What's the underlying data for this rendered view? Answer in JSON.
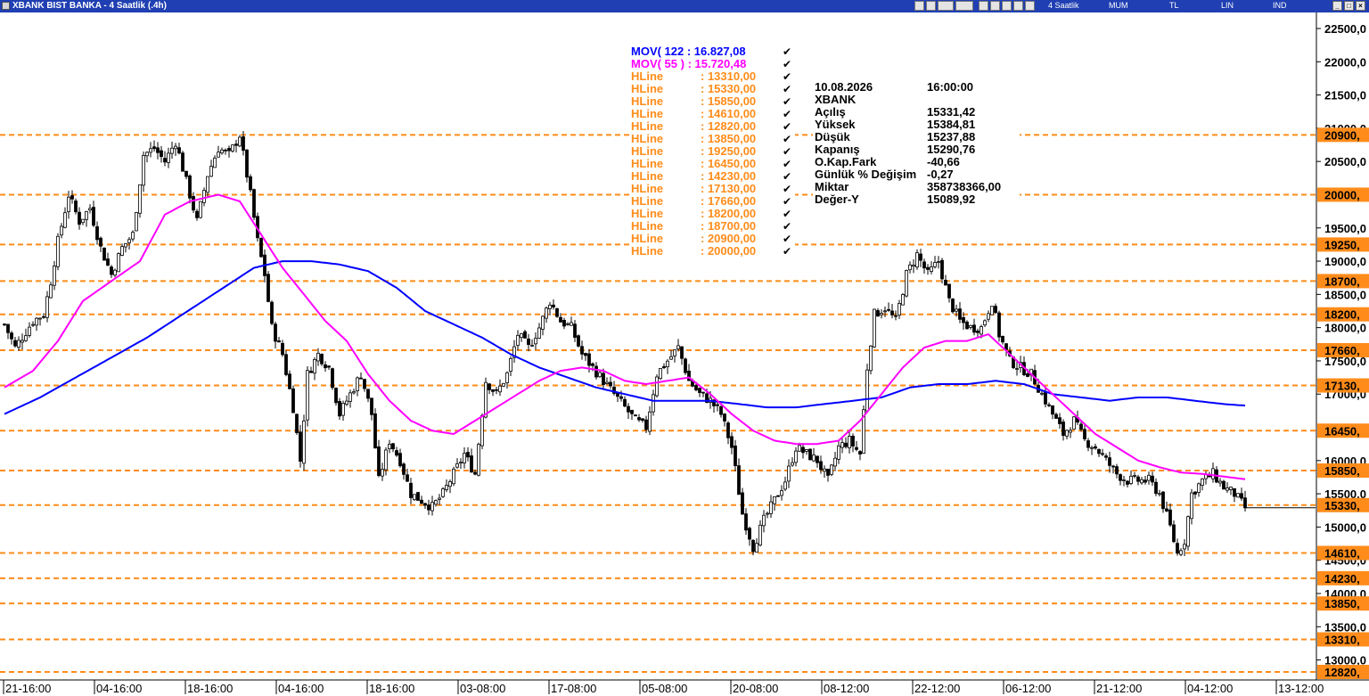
{
  "window": {
    "title": "XBANK BIST BANKA - 4 Saatlik (.4h)",
    "toolbar_labels": [
      "4 Saatlik",
      "MUM",
      "TL",
      "LIN",
      "IND"
    ]
  },
  "legend": {
    "mov_lines": [
      {
        "label": "MOV( 122 : 16.827,08",
        "color": "#0000ff"
      },
      {
        "label": "MOV( 55 ) : 15.720,48",
        "color": "#ff00ff"
      }
    ],
    "hlines": [
      {
        "name": "HLine",
        "value": ": 13310,00"
      },
      {
        "name": "HLine",
        "value": ": 15330,00"
      },
      {
        "name": "HLine",
        "value": ": 15850,00"
      },
      {
        "name": "HLine",
        "value": ": 14610,00"
      },
      {
        "name": "HLine",
        "value": ": 12820,00"
      },
      {
        "name": "HLine",
        "value": ": 13850,00"
      },
      {
        "name": "HLine",
        "value": ": 19250,00"
      },
      {
        "name": "HLine",
        "value": ": 16450,00"
      },
      {
        "name": "HLine",
        "value": ": 14230,00"
      },
      {
        "name": "HLine",
        "value": ": 17130,00"
      },
      {
        "name": "HLine",
        "value": ": 17660,00"
      },
      {
        "name": "HLine",
        "value": ": 18200,00"
      },
      {
        "name": "HLine",
        "value": ": 18700,00"
      },
      {
        "name": "HLine",
        "value": ": 20900,00"
      },
      {
        "name": "HLine",
        "value": ": 20000,00"
      }
    ],
    "check": "✔"
  },
  "info": [
    [
      "10.08.2026",
      "16:00:00"
    ],
    [
      "XBANK",
      ""
    ],
    [
      "Açılış",
      "15331,42"
    ],
    [
      "Yüksek",
      "15384,81"
    ],
    [
      "Düşük",
      "15237,88"
    ],
    [
      "Kapanış",
      "15290,76"
    ],
    [
      "O.Kap.Fark",
      "-40,66"
    ],
    [
      "Günlük % Değişim",
      "-0,27"
    ],
    [
      "Miktar",
      "358738366,00"
    ],
    [
      "Değer-Y",
      "15089,92"
    ]
  ],
  "colors": {
    "titlebar": "#1f3fb2",
    "mov122": "#0000ff",
    "mov55": "#ff00ff",
    "hline": "#ff8c1a",
    "hline_label_bg": "#ff8c1a",
    "candle": "#000000"
  },
  "chart_data": {
    "type": "candlestick",
    "symbol": "XBANK",
    "ylim": [
      12750,
      22650
    ],
    "y_ticks": [
      {
        "value": 22500,
        "label": "22500,0"
      },
      {
        "value": 22000,
        "label": "22000,0"
      },
      {
        "value": 21500,
        "label": "21500,0"
      },
      {
        "value": 21000,
        "label": "21000,0"
      },
      {
        "value": 20500,
        "label": "20500,0"
      },
      {
        "value": 19500,
        "label": "19500,0"
      },
      {
        "value": 19000,
        "label": "19000,0"
      },
      {
        "value": 18500,
        "label": "18500,0"
      },
      {
        "value": 18000,
        "label": "18000,0"
      },
      {
        "value": 17500,
        "label": "17500,0"
      },
      {
        "value": 17000,
        "label": "17000,0"
      },
      {
        "value": 16000,
        "label": "16000,0"
      },
      {
        "value": 15500,
        "label": "15500,0"
      },
      {
        "value": 15000,
        "label": "15000,0"
      },
      {
        "value": 14500,
        "label": "14500,0"
      },
      {
        "value": 14000,
        "label": "14000,0"
      },
      {
        "value": 13500,
        "label": "13500,0"
      },
      {
        "value": 13000,
        "label": "13000,0"
      }
    ],
    "hline_levels": [
      {
        "value": 20900,
        "label": "20900,"
      },
      {
        "value": 20000,
        "label": "20000,"
      },
      {
        "value": 19250,
        "label": "19250,"
      },
      {
        "value": 18700,
        "label": "18700,"
      },
      {
        "value": 18200,
        "label": "18200,"
      },
      {
        "value": 17660,
        "label": "17660,"
      },
      {
        "value": 17130,
        "label": "17130,"
      },
      {
        "value": 16450,
        "label": "16450,"
      },
      {
        "value": 15850,
        "label": "15850,"
      },
      {
        "value": 15330,
        "label": "15330,"
      },
      {
        "value": 14610,
        "label": "14610,"
      },
      {
        "value": 14230,
        "label": "14230,"
      },
      {
        "value": 13850,
        "label": "13850,"
      },
      {
        "value": 13310,
        "label": "13310,"
      },
      {
        "value": 12820,
        "label": "12820,"
      }
    ],
    "x_labels": [
      "21-16:00",
      "04-16:00",
      "18-16:00",
      "04-16:00",
      "18-16:00",
      "03-08:00",
      "17-08:00",
      "05-08:00",
      "20-08:00",
      "08-12:00",
      "22-12:00",
      "06-12:00",
      "21-12:00",
      "04-12:00",
      "13-12:00"
    ],
    "x_label_bars": [
      0,
      25.5,
      51,
      76.5,
      102,
      127.5,
      153,
      178.5,
      204,
      229.5,
      255,
      280.5,
      306,
      331.5,
      357
    ],
    "total_slots": 364,
    "close_path": [
      [
        0,
        18050
      ],
      [
        3,
        17700
      ],
      [
        8,
        18100
      ],
      [
        11,
        18200
      ],
      [
        13,
        18700
      ],
      [
        15,
        19300
      ],
      [
        18,
        20000
      ],
      [
        21,
        19600
      ],
      [
        24,
        19800
      ],
      [
        27,
        19200
      ],
      [
        30,
        18800
      ],
      [
        33,
        19200
      ],
      [
        36,
        19400
      ],
      [
        39,
        20600
      ],
      [
        42,
        20700
      ],
      [
        45,
        20500
      ],
      [
        48,
        20800
      ],
      [
        51,
        20200
      ],
      [
        54,
        19600
      ],
      [
        57,
        20300
      ],
      [
        60,
        20700
      ],
      [
        63,
        20600
      ],
      [
        66,
        20900
      ],
      [
        69,
        20000
      ],
      [
        71,
        19300
      ],
      [
        73,
        18800
      ],
      [
        75,
        18000
      ],
      [
        78,
        17600
      ],
      [
        81,
        16800
      ],
      [
        83,
        16000
      ],
      [
        85,
        17300
      ],
      [
        88,
        17600
      ],
      [
        91,
        17400
      ],
      [
        94,
        16700
      ],
      [
        97,
        17000
      ],
      [
        100,
        17300
      ],
      [
        103,
        16700
      ],
      [
        105,
        15700
      ],
      [
        108,
        16300
      ],
      [
        111,
        16000
      ],
      [
        114,
        15500
      ],
      [
        117,
        15400
      ],
      [
        120,
        15300
      ],
      [
        123,
        15500
      ],
      [
        126,
        15800
      ],
      [
        129,
        16100
      ],
      [
        132,
        15800
      ],
      [
        135,
        17200
      ],
      [
        138,
        17000
      ],
      [
        141,
        17300
      ],
      [
        144,
        17900
      ],
      [
        147,
        17700
      ],
      [
        150,
        18000
      ],
      [
        153,
        18400
      ],
      [
        156,
        18100
      ],
      [
        159,
        18000
      ],
      [
        162,
        17600
      ],
      [
        165,
        17400
      ],
      [
        168,
        17200
      ],
      [
        171,
        17000
      ],
      [
        174,
        16800
      ],
      [
        177,
        16600
      ],
      [
        180,
        16500
      ],
      [
        183,
        17300
      ],
      [
        186,
        17500
      ],
      [
        189,
        17700
      ],
      [
        192,
        17200
      ],
      [
        195,
        17000
      ],
      [
        198,
        16900
      ],
      [
        201,
        16700
      ],
      [
        204,
        16200
      ],
      [
        207,
        15200
      ],
      [
        210,
        14700
      ],
      [
        213,
        15100
      ],
      [
        216,
        15400
      ],
      [
        219,
        15700
      ],
      [
        222,
        16200
      ],
      [
        225,
        16100
      ],
      [
        228,
        16000
      ],
      [
        231,
        15700
      ],
      [
        234,
        16200
      ],
      [
        237,
        16300
      ],
      [
        240,
        16100
      ],
      [
        242,
        17400
      ],
      [
        244,
        18200
      ],
      [
        247,
        18300
      ],
      [
        250,
        18100
      ],
      [
        253,
        18800
      ],
      [
        256,
        19100
      ],
      [
        259,
        18800
      ],
      [
        262,
        19000
      ],
      [
        265,
        18400
      ],
      [
        268,
        18100
      ],
      [
        271,
        18000
      ],
      [
        274,
        18000
      ],
      [
        277,
        18400
      ],
      [
        279,
        17900
      ],
      [
        282,
        17500
      ],
      [
        285,
        17400
      ],
      [
        288,
        17300
      ],
      [
        291,
        17000
      ],
      [
        294,
        16700
      ],
      [
        297,
        16400
      ],
      [
        300,
        16600
      ],
      [
        303,
        16300
      ],
      [
        306,
        16200
      ],
      [
        309,
        16000
      ],
      [
        312,
        15800
      ],
      [
        315,
        15700
      ],
      [
        318,
        15700
      ],
      [
        321,
        15700
      ],
      [
        324,
        15500
      ],
      [
        327,
        15000
      ],
      [
        329,
        14600
      ],
      [
        331,
        14800
      ],
      [
        333,
        15500
      ],
      [
        336,
        15700
      ],
      [
        339,
        15800
      ],
      [
        342,
        15600
      ],
      [
        345,
        15500
      ],
      [
        348,
        15290
      ]
    ],
    "mov55_path": [
      [
        0,
        17100
      ],
      [
        8,
        17350
      ],
      [
        15,
        17800
      ],
      [
        22,
        18400
      ],
      [
        30,
        18700
      ],
      [
        38,
        19000
      ],
      [
        45,
        19700
      ],
      [
        52,
        19900
      ],
      [
        60,
        20000
      ],
      [
        66,
        19900
      ],
      [
        72,
        19400
      ],
      [
        78,
        18900
      ],
      [
        84,
        18500
      ],
      [
        90,
        18100
      ],
      [
        96,
        17800
      ],
      [
        102,
        17300
      ],
      [
        108,
        16900
      ],
      [
        114,
        16600
      ],
      [
        120,
        16450
      ],
      [
        126,
        16400
      ],
      [
        132,
        16600
      ],
      [
        138,
        16800
      ],
      [
        144,
        17000
      ],
      [
        150,
        17200
      ],
      [
        156,
        17350
      ],
      [
        162,
        17400
      ],
      [
        168,
        17350
      ],
      [
        174,
        17200
      ],
      [
        180,
        17150
      ],
      [
        186,
        17200
      ],
      [
        192,
        17250
      ],
      [
        198,
        17000
      ],
      [
        204,
        16700
      ],
      [
        210,
        16450
      ],
      [
        216,
        16300
      ],
      [
        222,
        16250
      ],
      [
        228,
        16250
      ],
      [
        234,
        16300
      ],
      [
        240,
        16600
      ],
      [
        246,
        17000
      ],
      [
        252,
        17400
      ],
      [
        258,
        17700
      ],
      [
        264,
        17800
      ],
      [
        270,
        17800
      ],
      [
        276,
        17900
      ],
      [
        282,
        17600
      ],
      [
        288,
        17300
      ],
      [
        294,
        17000
      ],
      [
        300,
        16700
      ],
      [
        306,
        16400
      ],
      [
        312,
        16200
      ],
      [
        318,
        16000
      ],
      [
        324,
        15900
      ],
      [
        330,
        15820
      ],
      [
        336,
        15800
      ],
      [
        342,
        15760
      ],
      [
        348,
        15720
      ]
    ],
    "mov122_path": [
      [
        0,
        16700
      ],
      [
        10,
        16950
      ],
      [
        20,
        17250
      ],
      [
        30,
        17550
      ],
      [
        40,
        17850
      ],
      [
        50,
        18200
      ],
      [
        60,
        18550
      ],
      [
        70,
        18900
      ],
      [
        78,
        19000
      ],
      [
        86,
        19000
      ],
      [
        94,
        18950
      ],
      [
        102,
        18850
      ],
      [
        110,
        18600
      ],
      [
        118,
        18250
      ],
      [
        126,
        18050
      ],
      [
        134,
        17850
      ],
      [
        142,
        17600
      ],
      [
        150,
        17400
      ],
      [
        158,
        17250
      ],
      [
        166,
        17100
      ],
      [
        174,
        17000
      ],
      [
        182,
        16900
      ],
      [
        190,
        16900
      ],
      [
        198,
        16900
      ],
      [
        206,
        16850
      ],
      [
        214,
        16800
      ],
      [
        222,
        16800
      ],
      [
        230,
        16850
      ],
      [
        238,
        16900
      ],
      [
        246,
        16950
      ],
      [
        254,
        17100
      ],
      [
        262,
        17150
      ],
      [
        270,
        17150
      ],
      [
        278,
        17200
      ],
      [
        286,
        17150
      ],
      [
        294,
        17000
      ],
      [
        302,
        16950
      ],
      [
        310,
        16900
      ],
      [
        318,
        16950
      ],
      [
        326,
        16950
      ],
      [
        334,
        16900
      ],
      [
        342,
        16850
      ],
      [
        348,
        16827
      ]
    ],
    "last_close": 15290.76
  }
}
